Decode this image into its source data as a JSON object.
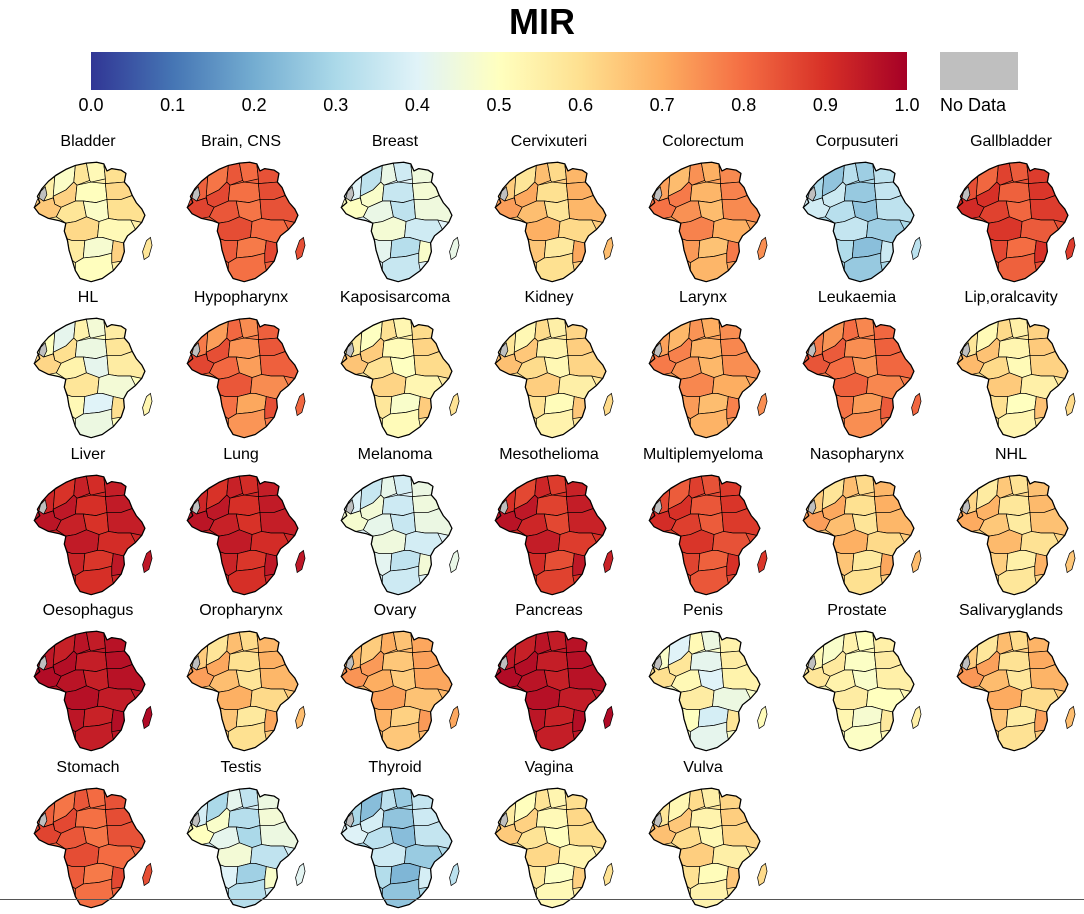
{
  "title": "MIR",
  "legend": {
    "ticks": [
      "0.0",
      "0.1",
      "0.2",
      "0.3",
      "0.4",
      "0.5",
      "0.6",
      "0.7",
      "0.8",
      "0.9",
      "1.0"
    ],
    "range": [
      0.0,
      1.0
    ],
    "no_data_label": "No Data",
    "no_data_color": "#BFBFBF",
    "color_stops": [
      "#313695",
      "#4575B4",
      "#74ADD1",
      "#ABD9E9",
      "#E0F3F8",
      "#FFFFBF",
      "#FEE090",
      "#FDAE61",
      "#F46D43",
      "#D73027",
      "#A50026"
    ]
  },
  "maps": [
    {
      "name": "Bladder",
      "mir": 0.55,
      "spread": 0.08
    },
    {
      "name": "Brain, CNS",
      "mir": 0.82,
      "spread": 0.04
    },
    {
      "name": "Breast",
      "mir": 0.4,
      "spread": 0.08
    },
    {
      "name": "Cervixuteri",
      "mir": 0.64,
      "spread": 0.07
    },
    {
      "name": "Colorectum",
      "mir": 0.72,
      "spread": 0.06
    },
    {
      "name": "Corpusuteri",
      "mir": 0.3,
      "spread": 0.06
    },
    {
      "name": "Gallbladder",
      "mir": 0.85,
      "spread": 0.05
    },
    {
      "name": "HL",
      "mir": 0.5,
      "spread": 0.1
    },
    {
      "name": "Hypopharynx",
      "mir": 0.78,
      "spread": 0.07
    },
    {
      "name": "Kaposisarcoma",
      "mir": 0.56,
      "spread": 0.08
    },
    {
      "name": "Kidney",
      "mir": 0.58,
      "spread": 0.07
    },
    {
      "name": "Larynx",
      "mir": 0.72,
      "spread": 0.05
    },
    {
      "name": "Leukaemia",
      "mir": 0.78,
      "spread": 0.05
    },
    {
      "name": "Lip,oralcavity",
      "mir": 0.58,
      "spread": 0.08
    },
    {
      "name": "Liver",
      "mir": 0.92,
      "spread": 0.03
    },
    {
      "name": "Lung",
      "mir": 0.92,
      "spread": 0.03
    },
    {
      "name": "Melanoma",
      "mir": 0.4,
      "spread": 0.06
    },
    {
      "name": "Mesothelioma",
      "mir": 0.9,
      "spread": 0.05
    },
    {
      "name": "Multiplemyeloma",
      "mir": 0.86,
      "spread": 0.04
    },
    {
      "name": "Nasopharynx",
      "mir": 0.64,
      "spread": 0.07
    },
    {
      "name": "NHL",
      "mir": 0.62,
      "spread": 0.07
    },
    {
      "name": "Oesophagus",
      "mir": 0.95,
      "spread": 0.02
    },
    {
      "name": "Oropharynx",
      "mir": 0.64,
      "spread": 0.07
    },
    {
      "name": "Ovary",
      "mir": 0.68,
      "spread": 0.05
    },
    {
      "name": "Pancreas",
      "mir": 0.95,
      "spread": 0.02
    },
    {
      "name": "Penis",
      "mir": 0.48,
      "spread": 0.1
    },
    {
      "name": "Prostate",
      "mir": 0.52,
      "spread": 0.05
    },
    {
      "name": "Salivaryglands",
      "mir": 0.64,
      "spread": 0.08
    },
    {
      "name": "Stomach",
      "mir": 0.82,
      "spread": 0.04
    },
    {
      "name": "Testis",
      "mir": 0.38,
      "spread": 0.1
    },
    {
      "name": "Thyroid",
      "mir": 0.3,
      "spread": 0.08
    },
    {
      "name": "Vagina",
      "mir": 0.56,
      "spread": 0.07
    },
    {
      "name": "Vulva",
      "mir": 0.58,
      "spread": 0.07
    }
  ]
}
